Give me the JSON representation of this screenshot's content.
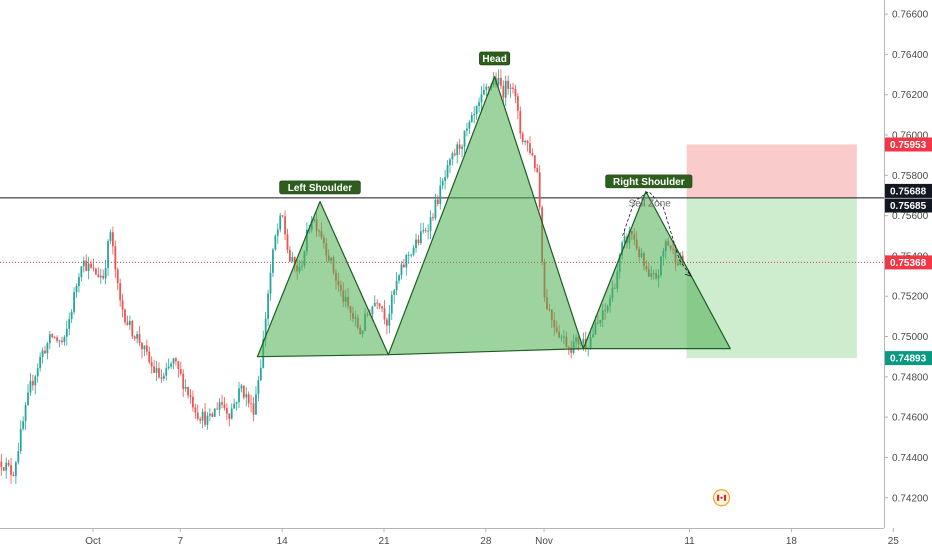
{
  "chart_data": {
    "type": "candlestick",
    "title": "",
    "ylim": [
      0.7405,
      0.7667
    ],
    "x_tick_labels": [
      {
        "day": 0,
        "label": "Oct"
      },
      {
        "day": 6,
        "label": "7"
      },
      {
        "day": 13,
        "label": "14"
      },
      {
        "day": 20,
        "label": "21"
      },
      {
        "day": 27,
        "label": "28"
      },
      {
        "day": 31,
        "label": "Nov"
      },
      {
        "day": 41,
        "label": "11"
      },
      {
        "day": 48,
        "label": "18"
      },
      {
        "day": 55,
        "label": "25"
      }
    ],
    "y_ticks": [
      "0.74200",
      "0.74400",
      "0.74600",
      "0.74800",
      "0.75000",
      "0.75200",
      "0.75400",
      "0.75600",
      "0.75800",
      "0.76000",
      "0.76200",
      "0.76400",
      "0.76600"
    ],
    "price_markers": [
      {
        "value": 0.75953,
        "label": "0.75953",
        "color": "#f23645"
      },
      {
        "value": 0.75688,
        "label": "0.75688",
        "color": "#131722"
      },
      {
        "value": 0.75685,
        "label": "0.75685",
        "color": "#131722"
      },
      {
        "value": 0.75368,
        "label": "0.75368",
        "color": "#f23645"
      },
      {
        "value": 0.74893,
        "label": "0.74893",
        "color": "#089981"
      }
    ],
    "horizontal_line": {
      "value": 0.75688
    },
    "current_price_line": {
      "value": 0.75368
    },
    "candle_range": {
      "start_day": -6.3,
      "end_day": 40.6
    },
    "candle_waypoints": [
      [
        -6.3,
        0.7438
      ],
      [
        -5.5,
        0.7432
      ],
      [
        -5.0,
        0.745
      ],
      [
        -4.3,
        0.7475
      ],
      [
        -3.5,
        0.7492
      ],
      [
        -2.8,
        0.75
      ],
      [
        -2.0,
        0.7496
      ],
      [
        -1.3,
        0.752
      ],
      [
        -0.8,
        0.7538
      ],
      [
        0,
        0.7532
      ],
      [
        0.7,
        0.753
      ],
      [
        1.2,
        0.7552
      ],
      [
        1.8,
        0.7518
      ],
      [
        2.5,
        0.7505
      ],
      [
        3.2,
        0.7498
      ],
      [
        4.0,
        0.7485
      ],
      [
        4.8,
        0.7478
      ],
      [
        5.5,
        0.7488
      ],
      [
        6.3,
        0.7476
      ],
      [
        7.2,
        0.7462
      ],
      [
        8.0,
        0.7458
      ],
      [
        8.7,
        0.7468
      ],
      [
        9.4,
        0.7462
      ],
      [
        10.2,
        0.7475
      ],
      [
        11.0,
        0.7463
      ],
      [
        11.6,
        0.749
      ],
      [
        12.0,
        0.752
      ],
      [
        12.5,
        0.7548
      ],
      [
        13.0,
        0.756
      ],
      [
        13.5,
        0.7538
      ],
      [
        14.2,
        0.7532
      ],
      [
        15.0,
        0.756
      ],
      [
        15.6,
        0.7553
      ],
      [
        16.2,
        0.754
      ],
      [
        17.0,
        0.7522
      ],
      [
        17.8,
        0.751
      ],
      [
        18.4,
        0.7502
      ],
      [
        18.9,
        0.7512
      ],
      [
        19.6,
        0.752
      ],
      [
        20.2,
        0.7508
      ],
      [
        20.8,
        0.7525
      ],
      [
        21.6,
        0.754
      ],
      [
        22.4,
        0.7548
      ],
      [
        23.2,
        0.7558
      ],
      [
        24.0,
        0.7575
      ],
      [
        24.8,
        0.759
      ],
      [
        25.6,
        0.76
      ],
      [
        26.4,
        0.7612
      ],
      [
        27.0,
        0.7622
      ],
      [
        27.6,
        0.7628
      ],
      [
        28.2,
        0.7622
      ],
      [
        28.8,
        0.7628
      ],
      [
        29.4,
        0.76
      ],
      [
        30.0,
        0.7594
      ],
      [
        30.6,
        0.758
      ],
      [
        31.0,
        0.752
      ],
      [
        31.6,
        0.7508
      ],
      [
        32.2,
        0.75
      ],
      [
        32.8,
        0.7495
      ],
      [
        33.4,
        0.7498
      ],
      [
        34.0,
        0.7497
      ],
      [
        34.6,
        0.7505
      ],
      [
        35.2,
        0.7512
      ],
      [
        35.8,
        0.7525
      ],
      [
        36.4,
        0.7545
      ],
      [
        37.0,
        0.7552
      ],
      [
        37.6,
        0.754
      ],
      [
        38.2,
        0.7528
      ],
      [
        38.8,
        0.753
      ],
      [
        39.4,
        0.7548
      ],
      [
        40.0,
        0.754
      ],
      [
        40.6,
        0.7536
      ]
    ],
    "pattern_triangles": [
      {
        "points": [
          [
            11.3,
            0.749
          ],
          [
            15.6,
            0.7567
          ],
          [
            20.3,
            0.7491
          ]
        ]
      },
      {
        "points": [
          [
            20.3,
            0.7491
          ],
          [
            27.6,
            0.7629
          ],
          [
            33.7,
            0.7494
          ]
        ]
      },
      {
        "points": [
          [
            33.7,
            0.7494
          ],
          [
            38.0,
            0.7572
          ],
          [
            43.8,
            0.7494
          ]
        ]
      }
    ],
    "pattern_labels": [
      {
        "label": "Left Shoulder",
        "day": 15.6,
        "value": 0.7574
      },
      {
        "label": "Head",
        "day": 27.6,
        "value": 0.7638
      },
      {
        "label": "Right Shoulder",
        "day": 38.2,
        "value": 0.7577
      }
    ],
    "position_box": {
      "start_day": 40.8,
      "end_day": 52.5,
      "stop_value": 0.75953,
      "entry_value": 0.75688,
      "target_value": 0.74893,
      "zone_label": "Sell Zone"
    },
    "zigzag_path": [
      [
        36.4,
        0.755
      ],
      [
        37.2,
        0.7567
      ],
      [
        38.2,
        0.7572
      ],
      [
        39.2,
        0.7564
      ],
      [
        40.3,
        0.7538
      ],
      [
        41.1,
        0.753
      ]
    ],
    "flag_icon": {
      "day": 43.2,
      "value": 0.742
    }
  }
}
